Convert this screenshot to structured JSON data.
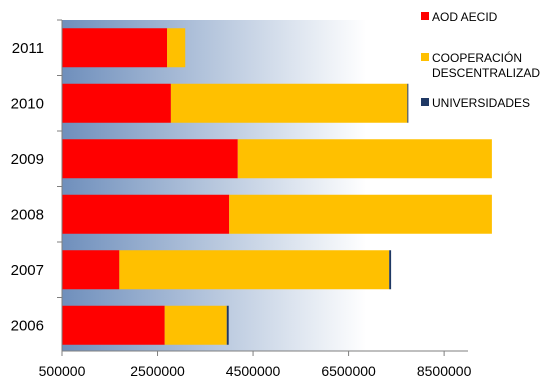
{
  "chart_data": {
    "type": "bar",
    "orientation": "horizontal",
    "stacked": true,
    "categories": [
      "2006",
      "2007",
      "2008",
      "2009",
      "2010",
      "2011"
    ],
    "series": [
      {
        "name": "AOD AECID",
        "color": "#ff0000",
        "values": [
          2150000,
          1200000,
          3500000,
          3680000,
          2280000,
          2200000
        ]
      },
      {
        "name": "COOPERACIÓN DESCENTRALIZADA",
        "name_lines": [
          "COOPERACIÓN",
          "DESCENTRALIZADA"
        ],
        "color": "#ffc000",
        "values": [
          1300000,
          5650000,
          5500000,
          5320000,
          4950000,
          380000
        ]
      },
      {
        "name": "UNIVERSIDADES",
        "color": "#1f3864",
        "values": [
          40000,
          40000,
          0,
          0,
          20000,
          0
        ]
      }
    ],
    "xlim": [
      500000,
      9000000
    ],
    "xticks": [
      500000,
      2500000,
      4500000,
      6500000,
      8500000
    ],
    "xtick_labels": [
      "500000",
      "2500000",
      "4500000",
      "6500000",
      "8500000"
    ],
    "legend_position": "right",
    "grid": false
  }
}
